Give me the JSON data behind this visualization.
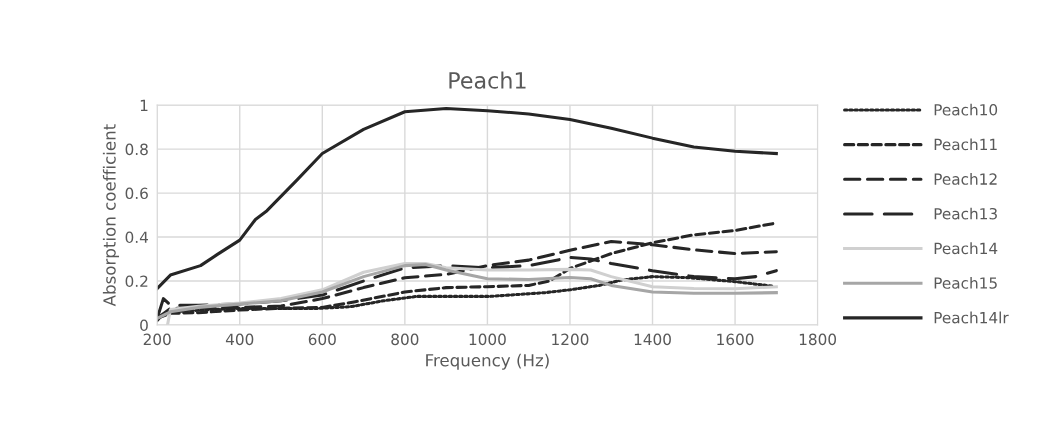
{
  "chart_data": {
    "type": "line",
    "title": "Peach1",
    "xlabel": "Frequency (Hz)",
    "ylabel": "Absorption coefficient",
    "xlim": [
      200,
      1800
    ],
    "xticks": [
      200,
      400,
      600,
      800,
      1000,
      1200,
      1400,
      1600,
      1800
    ],
    "ylim": [
      0,
      1
    ],
    "yticks": [
      0,
      0.2,
      0.4,
      0.6,
      0.8,
      1
    ],
    "grid": true,
    "legend": "right",
    "marker": "none",
    "series": [
      {
        "name": "Peach10",
        "color": "#262626",
        "line_style": "dotted",
        "x": [
          200,
          215,
          232,
          385,
          587,
          668,
          748,
          829,
          1006,
          1140,
          1200,
          1271,
          1327,
          1400,
          1489,
          1600,
          1690
        ],
        "values": [
          0.02,
          0.05,
          0.06,
          0.075,
          0.075,
          0.083,
          0.11,
          0.13,
          0.13,
          0.147,
          0.16,
          0.18,
          0.205,
          0.22,
          0.215,
          0.197,
          0.177
        ]
      },
      {
        "name": "Peach11",
        "color": "#262626",
        "line_style": "dashed",
        "x": [
          200,
          232,
          300,
          400,
          500,
          600,
          680,
          800,
          900,
          1000,
          1100,
          1150,
          1200,
          1300,
          1400,
          1500,
          1600,
          1700
        ],
        "values": [
          0.03,
          0.053,
          0.056,
          0.068,
          0.076,
          0.08,
          0.106,
          0.15,
          0.17,
          0.174,
          0.18,
          0.2,
          0.257,
          0.325,
          0.374,
          0.41,
          0.43,
          0.464
        ]
      },
      {
        "name": "Peach12",
        "color": "#262626",
        "line_style": "dashed",
        "x": [
          200,
          232,
          400,
          500,
          600,
          700,
          800,
          900,
          1000,
          1100,
          1200,
          1300,
          1400,
          1500,
          1600,
          1700
        ],
        "values": [
          0.03,
          0.075,
          0.08,
          0.086,
          0.12,
          0.17,
          0.215,
          0.23,
          0.27,
          0.295,
          0.34,
          0.38,
          0.365,
          0.342,
          0.325,
          0.333
        ]
      },
      {
        "name": "Peach13",
        "color": "#262626",
        "line_style": "dashed",
        "x": [
          200,
          215,
          232,
          300,
          400,
          500,
          600,
          700,
          800,
          900,
          1000,
          1100,
          1200,
          1250,
          1300,
          1400,
          1500,
          1600,
          1650,
          1700
        ],
        "values": [
          0.03,
          0.12,
          0.09,
          0.09,
          0.095,
          0.11,
          0.136,
          0.2,
          0.26,
          0.27,
          0.26,
          0.27,
          0.307,
          0.3,
          0.28,
          0.247,
          0.22,
          0.21,
          0.22,
          0.247
        ]
      },
      {
        "name": "Peach14",
        "color": "#d0d0d0",
        "line_style": "solid",
        "x": [
          225,
          232,
          300,
          400,
          500,
          600,
          700,
          800,
          850,
          900,
          1000,
          1100,
          1200,
          1250,
          1300,
          1400,
          1500,
          1600,
          1700
        ],
        "values": [
          0.0,
          0.07,
          0.085,
          0.1,
          0.12,
          0.16,
          0.24,
          0.28,
          0.28,
          0.26,
          0.25,
          0.25,
          0.253,
          0.25,
          0.22,
          0.174,
          0.166,
          0.165,
          0.174
        ]
      },
      {
        "name": "Peach15",
        "color": "#a6a6a6",
        "line_style": "solid",
        "x": [
          200,
          232,
          300,
          400,
          500,
          600,
          700,
          800,
          850,
          900,
          1000,
          1100,
          1200,
          1250,
          1300,
          1400,
          1500,
          1600,
          1700
        ],
        "values": [
          0.03,
          0.06,
          0.08,
          0.095,
          0.11,
          0.15,
          0.22,
          0.27,
          0.275,
          0.25,
          0.21,
          0.207,
          0.216,
          0.21,
          0.18,
          0.15,
          0.144,
          0.144,
          0.147
        ]
      },
      {
        "name": "Peach14lr",
        "color": "#262626",
        "line_style": "solid",
        "x": [
          200,
          232,
          305,
          345,
          400,
          438,
          466,
          539,
          600,
          700,
          800,
          900,
          1000,
          1100,
          1200,
          1300,
          1400,
          1500,
          1600,
          1700
        ],
        "values": [
          0.166,
          0.227,
          0.27,
          0.32,
          0.386,
          0.48,
          0.52,
          0.66,
          0.78,
          0.89,
          0.97,
          0.985,
          0.975,
          0.96,
          0.935,
          0.895,
          0.85,
          0.81,
          0.79,
          0.78
        ]
      }
    ]
  }
}
